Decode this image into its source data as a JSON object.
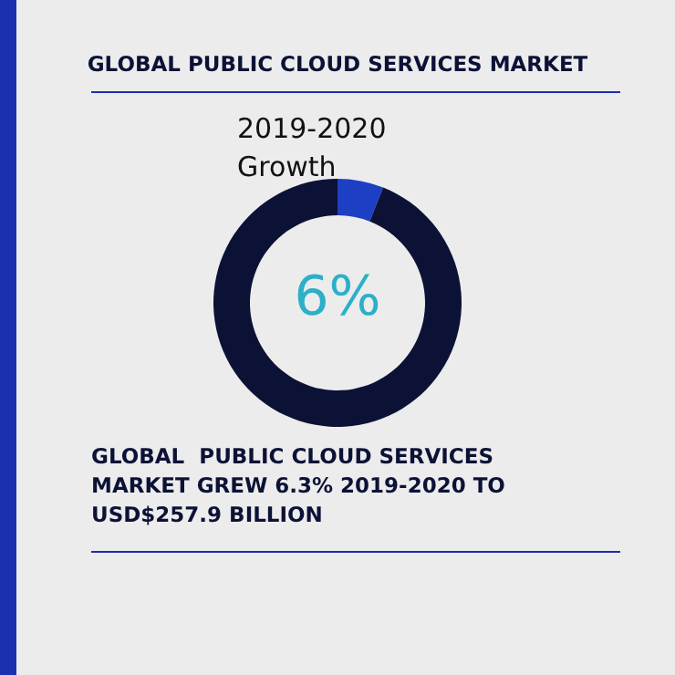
{
  "chart_data": {
    "type": "donut",
    "title": "GLOBAL PUBLIC CLOUD SERVICES MARKET",
    "subtitle": "2019-2020 Growth",
    "categories": [
      null,
      null
    ],
    "values": [
      6,
      94
    ],
    "colors": [
      "#1c3fc4",
      "#0c1236"
    ],
    "annotations": [
      "6%",
      "GLOBAL  PUBLIC CLOUD SERVICES MARKET GREW 6.3% 2019-2020 TO USD$257.9 BILLION"
    ]
  }
}
